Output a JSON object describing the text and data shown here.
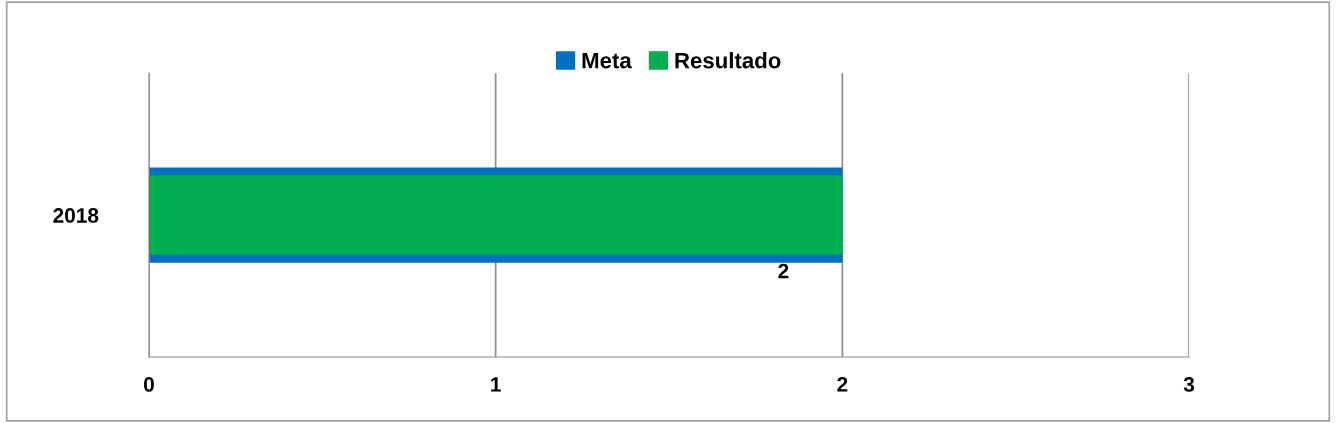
{
  "chart_data": {
    "type": "bar",
    "orientation": "horizontal",
    "categories": [
      "2018"
    ],
    "series": [
      {
        "name": "Meta",
        "color": "#0070c0",
        "values": [
          2
        ],
        "value_labels": [
          "2"
        ]
      },
      {
        "name": "Resultado",
        "color": "#00b050",
        "values": [
          2
        ]
      }
    ],
    "xlim": [
      0,
      3
    ],
    "xticks": [
      0,
      1,
      2,
      3
    ],
    "grid": "x",
    "legend": "top"
  }
}
